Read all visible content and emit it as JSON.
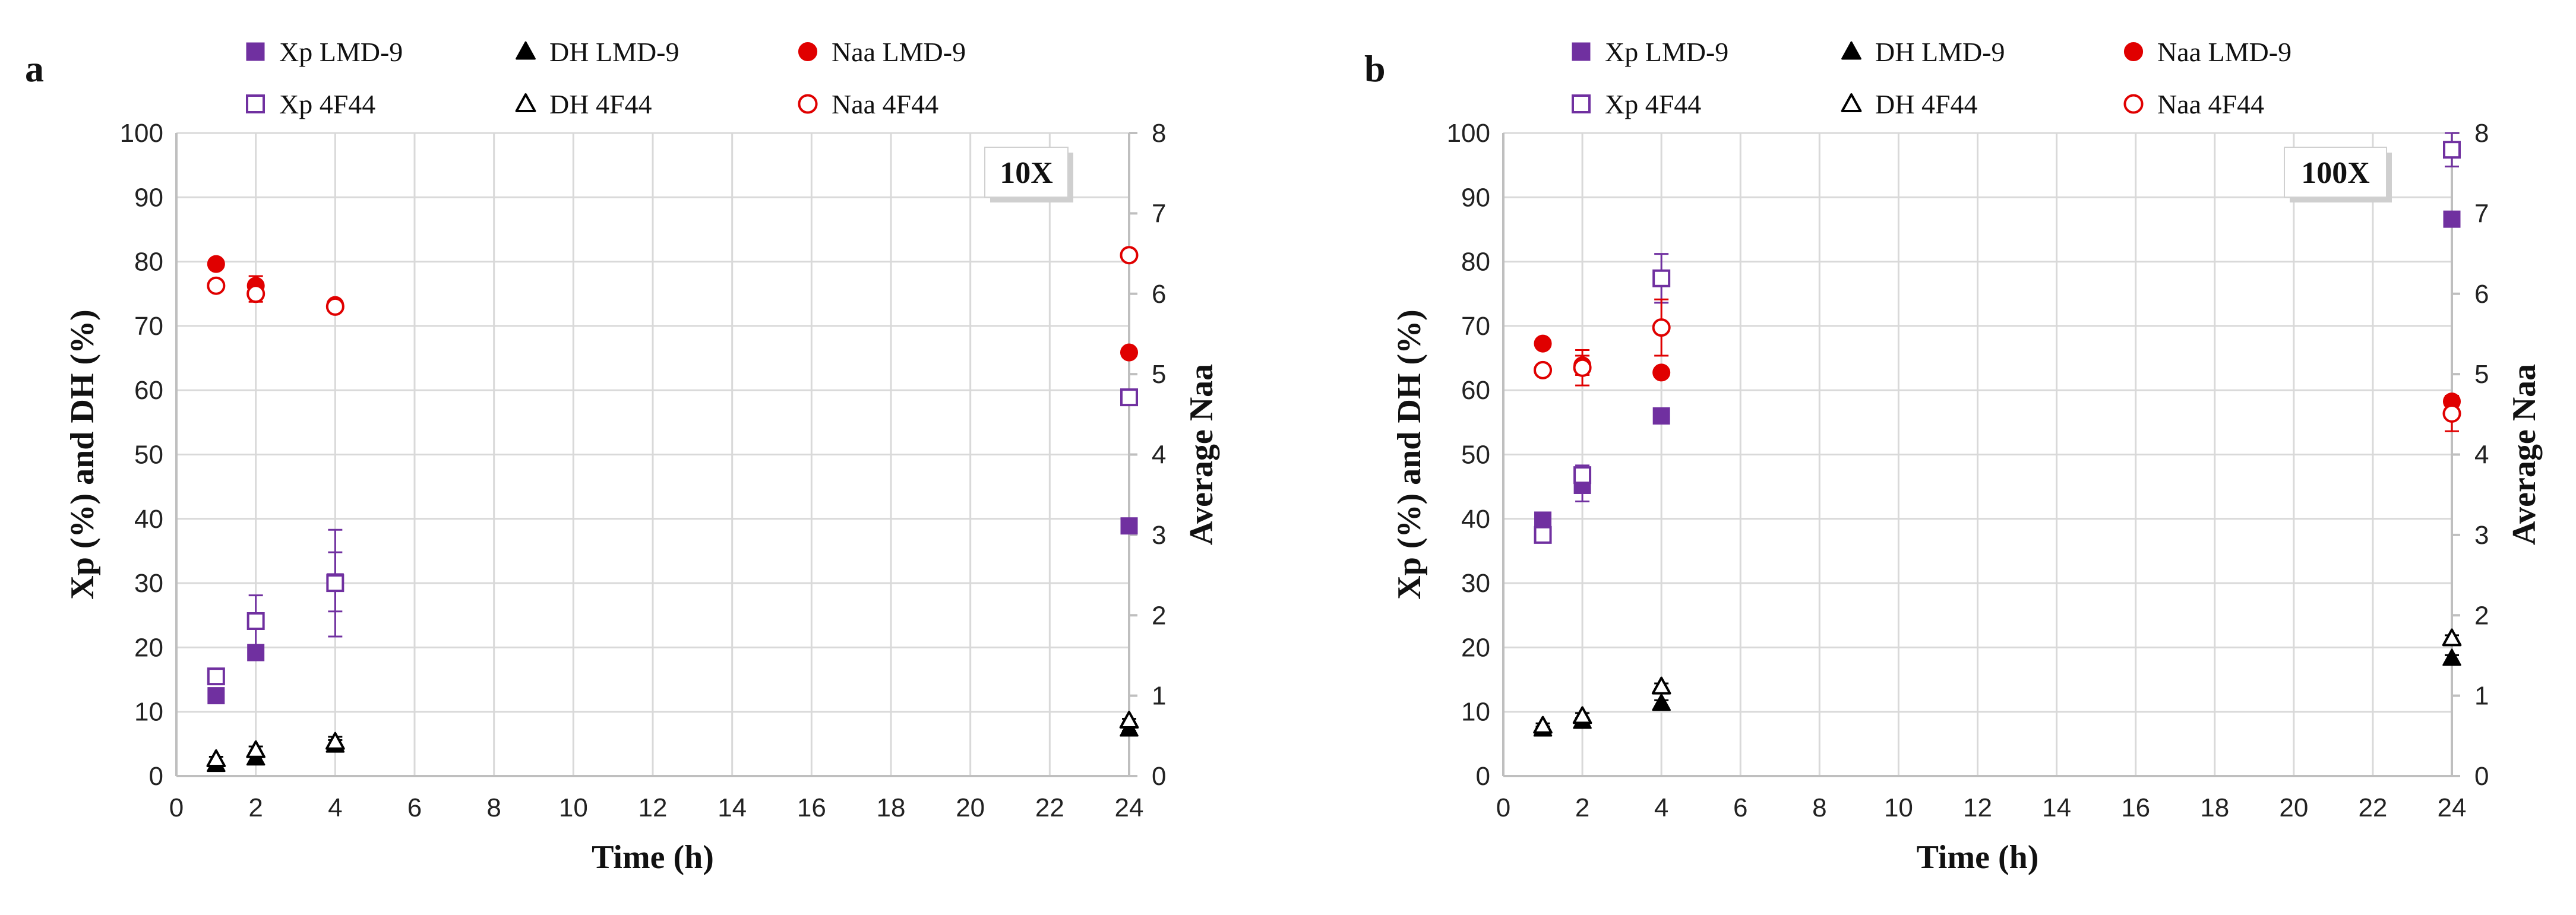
{
  "colors": {
    "purple": "#7030A0",
    "black": "#000000",
    "red": "#E00000"
  },
  "chart_data": [
    {
      "type": "scatter",
      "panel_label": "a",
      "tag": "10X",
      "xlabel": "Time (h)",
      "ylabel": "Xp (%) and DH (%)",
      "y2label": "Average Naa",
      "xlim": [
        0,
        24
      ],
      "ylim": [
        0,
        100
      ],
      "y2lim": [
        0,
        8
      ],
      "xticks": [
        "0",
        "2",
        "4",
        "6",
        "8",
        "10",
        "12",
        "14",
        "16",
        "18",
        "20",
        "22",
        "24"
      ],
      "yticks": [
        "0",
        "10",
        "20",
        "30",
        "40",
        "50",
        "60",
        "70",
        "80",
        "90",
        "100"
      ],
      "y2ticks": [
        "0",
        "1",
        "2",
        "3",
        "4",
        "5",
        "6",
        "7",
        "8"
      ],
      "legend": [
        {
          "label": "Xp LMD-9",
          "marker": "square-filled",
          "color": "purple"
        },
        {
          "label": "DH LMD-9",
          "marker": "triangle-filled",
          "color": "black"
        },
        {
          "label": "Naa LMD-9",
          "marker": "circle-filled",
          "color": "red"
        },
        {
          "label": "Xp 4F44",
          "marker": "square-open",
          "color": "purple"
        },
        {
          "label": "DH 4F44",
          "marker": "triangle-open",
          "color": "black"
        },
        {
          "label": "Naa 4F44",
          "marker": "circle-open",
          "color": "red"
        }
      ],
      "series": [
        {
          "name": "Xp LMD-9",
          "axis": "left",
          "marker": "square-filled",
          "color": "purple",
          "x": [
            1,
            2,
            4,
            24
          ],
          "y": [
            12.5,
            19.2,
            30.2,
            38.9
          ],
          "err": [
            0.5,
            0.8,
            4.6,
            0.5
          ]
        },
        {
          "name": "Xp 4F44",
          "axis": "left",
          "marker": "square-open",
          "color": "purple",
          "x": [
            1,
            2,
            4,
            24
          ],
          "y": [
            15.5,
            24.1,
            30.0,
            58.9
          ],
          "err": [
            1.0,
            4.0,
            8.3,
            0.8
          ]
        },
        {
          "name": "DH LMD-9",
          "axis": "left",
          "marker": "triangle-filled",
          "color": "black",
          "x": [
            1,
            2,
            4,
            24
          ],
          "y": [
            1.8,
            2.8,
            4.8,
            7.3
          ],
          "err": [
            0.4,
            0.5,
            0.8,
            0.3
          ]
        },
        {
          "name": "DH 4F44",
          "axis": "left",
          "marker": "triangle-open",
          "color": "black",
          "x": [
            1,
            2,
            4,
            24
          ],
          "y": [
            2.6,
            4.0,
            5.3,
            8.6
          ],
          "err": [
            0.4,
            0.6,
            0.8,
            0.3
          ]
        },
        {
          "name": "Naa LMD-9",
          "axis": "right",
          "marker": "circle-filled",
          "color": "red",
          "x": [
            1,
            2,
            4,
            24
          ],
          "y": [
            6.37,
            6.1,
            5.86,
            5.27
          ],
          "err": [
            0.03,
            0.12,
            0.05,
            0.03
          ]
        },
        {
          "name": "Naa 4F44",
          "axis": "right",
          "marker": "circle-open",
          "color": "red",
          "x": [
            1,
            2,
            4,
            24
          ],
          "y": [
            6.1,
            6.0,
            5.84,
            6.48
          ],
          "err": [
            0.03,
            0.1,
            0.05,
            0.04
          ]
        }
      ]
    },
    {
      "type": "scatter",
      "panel_label": "b",
      "tag": "100X",
      "xlabel": "Time (h)",
      "ylabel": "Xp (%) and DH (%)",
      "y2label": "Average Naa",
      "xlim": [
        0,
        24
      ],
      "ylim": [
        0,
        100
      ],
      "y2lim": [
        0,
        8
      ],
      "xticks": [
        "0",
        "2",
        "4",
        "6",
        "8",
        "10",
        "12",
        "14",
        "16",
        "18",
        "20",
        "22",
        "24"
      ],
      "yticks": [
        "0",
        "10",
        "20",
        "30",
        "40",
        "50",
        "60",
        "70",
        "80",
        "90",
        "100"
      ],
      "y2ticks": [
        "0",
        "1",
        "2",
        "3",
        "4",
        "5",
        "6",
        "7",
        "8"
      ],
      "legend": [
        {
          "label": "Xp LMD-9",
          "marker": "square-filled",
          "color": "purple"
        },
        {
          "label": "DH LMD-9",
          "marker": "triangle-filled",
          "color": "black"
        },
        {
          "label": "Naa LMD-9",
          "marker": "circle-filled",
          "color": "red"
        },
        {
          "label": "Xp 4F44",
          "marker": "square-open",
          "color": "purple"
        },
        {
          "label": "DH 4F44",
          "marker": "triangle-open",
          "color": "black"
        },
        {
          "label": "Naa 4F44",
          "marker": "circle-open",
          "color": "red"
        }
      ],
      "series": [
        {
          "name": "Xp LMD-9",
          "axis": "left",
          "marker": "square-filled",
          "color": "purple",
          "x": [
            1,
            2,
            4,
            24
          ],
          "y": [
            39.8,
            45.2,
            56.0,
            86.6
          ],
          "err": [
            0.5,
            2.5,
            0.5,
            0.5
          ]
        },
        {
          "name": "Xp 4F44",
          "axis": "left",
          "marker": "square-open",
          "color": "purple",
          "x": [
            1,
            2,
            4,
            24
          ],
          "y": [
            37.5,
            46.8,
            77.4,
            97.4
          ],
          "err": [
            0.8,
            1.5,
            3.8,
            2.6
          ]
        },
        {
          "name": "DH LMD-9",
          "axis": "left",
          "marker": "triangle-filled",
          "color": "black",
          "x": [
            1,
            2,
            4,
            24
          ],
          "y": [
            7.3,
            8.5,
            11.3,
            18.3
          ],
          "err": [
            0.4,
            0.5,
            0.5,
            0.5
          ]
        },
        {
          "name": "DH 4F44",
          "axis": "left",
          "marker": "triangle-open",
          "color": "black",
          "x": [
            1,
            2,
            4,
            24
          ],
          "y": [
            7.8,
            9.3,
            13.9,
            21.4
          ],
          "err": [
            0.4,
            0.5,
            0.5,
            0.5
          ]
        },
        {
          "name": "Naa LMD-9",
          "axis": "right",
          "marker": "circle-filled",
          "color": "red",
          "x": [
            1,
            2,
            4,
            24
          ],
          "y": [
            5.38,
            5.11,
            5.02,
            4.66
          ],
          "err": [
            0.03,
            0.12,
            0.05,
            0.05
          ]
        },
        {
          "name": "Naa 4F44",
          "axis": "right",
          "marker": "circle-open",
          "color": "red",
          "x": [
            1,
            2,
            4,
            24
          ],
          "y": [
            5.05,
            5.08,
            5.58,
            4.51
          ],
          "err": [
            0.03,
            0.22,
            0.35,
            0.22
          ]
        }
      ]
    }
  ]
}
